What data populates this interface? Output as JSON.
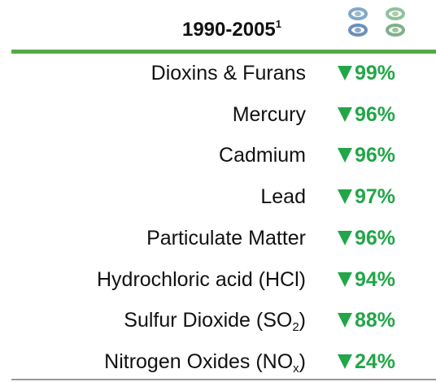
{
  "header": {
    "title": "1990-2005",
    "footnote_mark": "1"
  },
  "rows": [
    {
      "label": "Dioxins & Furans",
      "change": "99%"
    },
    {
      "label": "Mercury",
      "change": "96%"
    },
    {
      "label": "Cadmium",
      "change": "96%"
    },
    {
      "label": "Lead",
      "change": "97%"
    },
    {
      "label": "Particulate Matter",
      "change": "96%"
    },
    {
      "label": "Hydrochloric acid (HCl)",
      "change": "94%"
    },
    {
      "label": "Sulfur Dioxide (SO",
      "sub": "2",
      "label_end": ")",
      "change": "88%"
    },
    {
      "label": "Nitrogen Oxides (NO",
      "sub": "x",
      "label_end": ")",
      "change": "24%"
    }
  ]
}
